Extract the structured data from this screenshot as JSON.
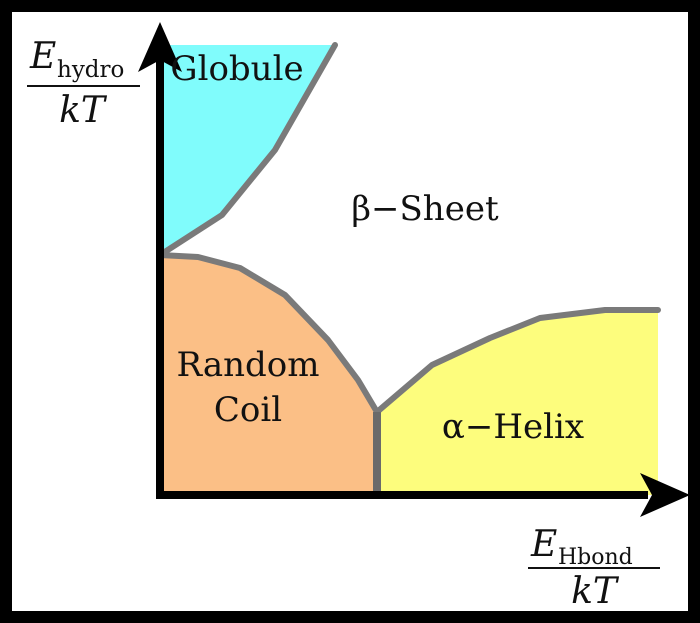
{
  "diagram": {
    "regions": {
      "globule": {
        "label": "Globule",
        "color": "#80fcfc"
      },
      "beta_sheet": {
        "label": "β−Sheet",
        "color": "#ffffff"
      },
      "random_coil": {
        "label_line1": "Random",
        "label_line2": "Coil",
        "color": "#fbbf86"
      },
      "alpha_helix": {
        "label": "α−Helix",
        "color": "#fdfd7d"
      }
    },
    "axes": {
      "y": {
        "numerator_main": "E",
        "numerator_sub": "hydro",
        "denominator": "kT"
      },
      "x": {
        "numerator_main": "E",
        "numerator_sub": "Hbond",
        "denominator": "kT"
      }
    },
    "colors": {
      "boundary": "#7a7a7a",
      "axis": "#000000",
      "frame": "#000000"
    }
  }
}
